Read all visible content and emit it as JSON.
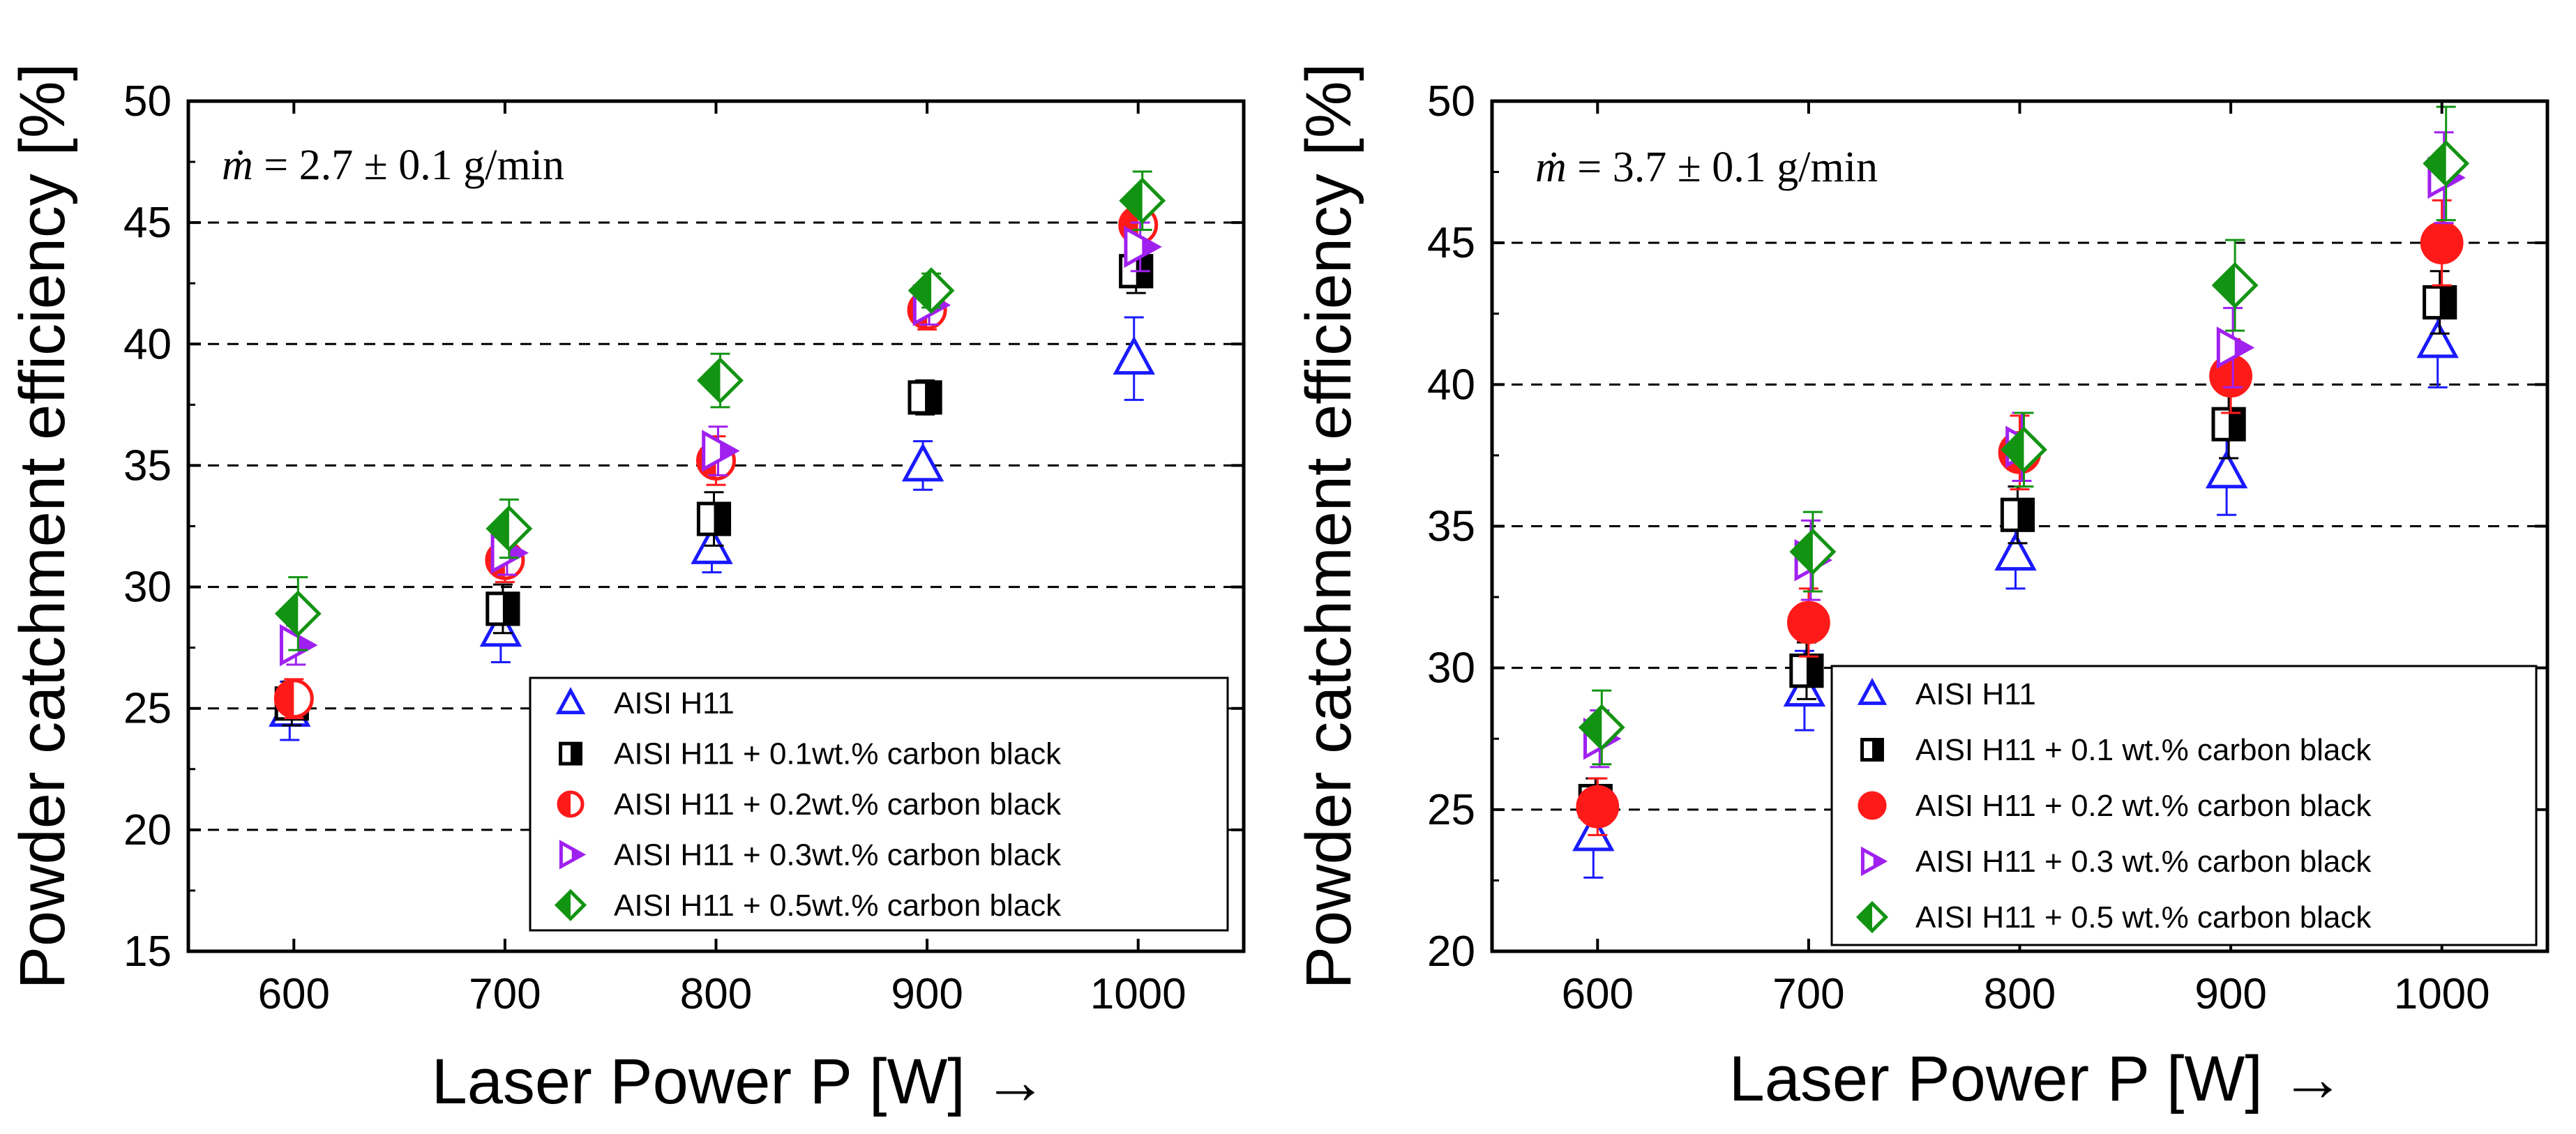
{
  "chart_data": [
    {
      "type": "scatter",
      "annotation_symbol": "ṁ",
      "annotation_rest": " = 2.7 ± 0.1 g/min",
      "xlabel": "Laser Power P [W]",
      "xlabel_arrow": "→",
      "ylabel": "Powder catchment efficiency [%]",
      "xlim": [
        550,
        1050
      ],
      "ylim": [
        15,
        50
      ],
      "xticks": [
        600,
        700,
        800,
        900,
        1000
      ],
      "yticks": [
        15,
        20,
        25,
        30,
        35,
        40,
        45,
        50
      ],
      "gridlines_y": [
        20,
        25,
        30,
        35,
        40,
        45
      ],
      "legend_position": "bottom-right",
      "series": [
        {
          "name": "AISI H11",
          "marker": "triangle-up-open",
          "color": "#1a1aff",
          "x": [
            600,
            700,
            800,
            900,
            1000
          ],
          "y": [
            24.9,
            28.2,
            31.6,
            35.0,
            39.4
          ],
          "err": [
            1.2,
            1.3,
            1.0,
            1.0,
            1.7
          ]
        },
        {
          "name": "AISI H11 + 0.1wt.% carbon black",
          "marker": "square-half",
          "color": "#000000",
          "x": [
            600,
            700,
            800,
            900,
            1000
          ],
          "y": [
            25.2,
            29.1,
            32.8,
            37.8,
            43.0
          ],
          "err": [
            0.9,
            1.0,
            1.1,
            0.7,
            0.9
          ]
        },
        {
          "name": "AISI H11 + 0.2wt.% carbon black",
          "marker": "circle-half",
          "color": "#ff1a1a",
          "x": [
            600,
            700,
            800,
            900,
            1000
          ],
          "y": [
            25.4,
            31.1,
            35.2,
            41.4,
            44.9
          ],
          "err": [
            0.8,
            0.9,
            1.0,
            0.8,
            0.9
          ]
        },
        {
          "name": "AISI H11 + 0.3wt.% carbon black",
          "marker": "triangle-right-half",
          "color": "#a020f0",
          "x": [
            600,
            700,
            800,
            900,
            1000
          ],
          "y": [
            27.6,
            31.4,
            35.6,
            41.6,
            44.0
          ],
          "err": [
            0.8,
            0.9,
            1.0,
            0.8,
            1.0
          ]
        },
        {
          "name": "AISI H11 + 0.5wt.% carbon black",
          "marker": "diamond-half",
          "color": "#129412",
          "x": [
            600,
            700,
            800,
            900,
            1000
          ],
          "y": [
            28.9,
            32.4,
            38.5,
            42.2,
            45.9
          ],
          "err": [
            1.5,
            1.2,
            1.1,
            0.7,
            1.2
          ]
        }
      ]
    },
    {
      "type": "scatter",
      "annotation_symbol": "ṁ",
      "annotation_rest": " = 3.7 ± 0.1 g/min",
      "xlabel": "Laser Power P [W]",
      "xlabel_arrow": "→",
      "ylabel": "Powder catchment efficiency [%]",
      "xlim": [
        550,
        1050
      ],
      "ylim": [
        20,
        50
      ],
      "xticks": [
        600,
        700,
        800,
        900,
        1000
      ],
      "yticks": [
        20,
        25,
        30,
        35,
        40,
        45,
        50
      ],
      "gridlines_y": [
        25,
        30,
        35,
        40,
        45
      ],
      "legend_position": "bottom-right",
      "series": [
        {
          "name": "AISI H11",
          "marker": "triangle-up-open",
          "color": "#1a1aff",
          "x": [
            600,
            700,
            800,
            900,
            1000
          ],
          "y": [
            24.1,
            29.2,
            34.0,
            36.9,
            41.5
          ],
          "err": [
            1.5,
            1.4,
            1.2,
            1.5,
            1.6
          ]
        },
        {
          "name": "AISI H11 + 0.1 wt.% carbon black",
          "marker": "square-half",
          "color": "#000000",
          "x": [
            600,
            700,
            800,
            900,
            1000
          ],
          "y": [
            25.3,
            29.9,
            35.4,
            38.6,
            42.9
          ],
          "err": [
            0.8,
            1.0,
            1.0,
            1.2,
            1.1
          ]
        },
        {
          "name": "AISI H11 + 0.2 wt.% carbon black",
          "marker": "circle-filled",
          "color": "#ff1a1a",
          "x": [
            600,
            700,
            800,
            900,
            1000
          ],
          "y": [
            25.1,
            31.6,
            37.6,
            40.3,
            45.0
          ],
          "err": [
            1.0,
            1.2,
            1.3,
            1.3,
            1.5
          ]
        },
        {
          "name": "AISI H11 + 0.3 wt.% carbon black",
          "marker": "triangle-right-half",
          "color": "#a020f0",
          "x": [
            600,
            700,
            800,
            900,
            1000
          ],
          "y": [
            27.5,
            33.8,
            37.8,
            41.3,
            47.3
          ],
          "err": [
            1.0,
            1.4,
            1.2,
            1.4,
            1.6
          ]
        },
        {
          "name": "AISI H11 + 0.5 wt.% carbon black",
          "marker": "diamond-half",
          "color": "#129412",
          "x": [
            600,
            700,
            800,
            900,
            1000
          ],
          "y": [
            27.9,
            34.1,
            37.7,
            43.5,
            47.8
          ],
          "err": [
            1.3,
            1.4,
            1.3,
            1.6,
            2.0
          ]
        }
      ]
    }
  ]
}
